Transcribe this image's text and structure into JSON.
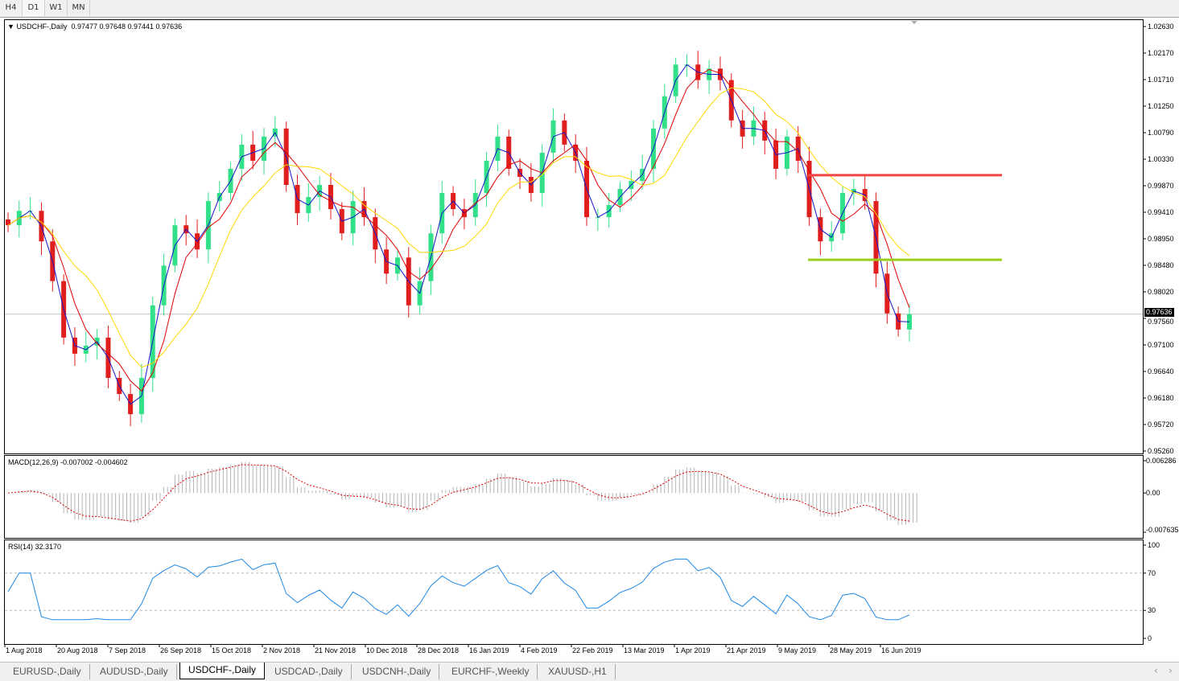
{
  "toolbar": {
    "timeframes": [
      {
        "label": "H4"
      },
      {
        "label": "D1",
        "active": true
      },
      {
        "label": "W1"
      },
      {
        "label": "MN"
      }
    ]
  },
  "chart_header": {
    "symbol": "USDCHF-,Daily",
    "ohlc": "0.97477 0.97648 0.97441 0.97636"
  },
  "colors": {
    "bull": "#33e08a",
    "bear": "#e01e1e",
    "ma_fast": "#1414c8",
    "ma_mid": "#e00000",
    "ma_slow": "#ffd700",
    "macd_hist": "#b4b4b4",
    "macd_signal": "#e00000",
    "rsi": "#1e88e5",
    "resistance": "#f04545",
    "support": "#9acd1e"
  },
  "chart_data": {
    "type": "candlestick",
    "symbol": "USDCHF",
    "timeframe": "Daily",
    "closes": [
      0.9918,
      0.9943,
      0.9943,
      0.989,
      0.9821,
      0.9723,
      0.9695,
      0.9709,
      0.9723,
      0.9653,
      0.9625,
      0.959,
      0.9653,
      0.9779,
      0.9848,
      0.9918,
      0.9904,
      0.9876,
      0.996,
      0.9974,
      1.0016,
      1.0058,
      1.003,
      1.0072,
      1.0086,
      0.9988,
      0.9939,
      0.9967,
      0.9988,
      0.9946,
      0.9904,
      0.996,
      0.9932,
      0.9876,
      0.9834,
      0.9862,
      0.9779,
      0.9821,
      0.9904,
      0.9974,
      0.9946,
      0.9932,
      0.9974,
      1.003,
      1.0072,
      1.0016,
      1.0002,
      0.9974,
      1.0044,
      1.01,
      1.0058,
      1.003,
      0.9932,
      0.9932,
      0.9953,
      0.9981,
      0.9995,
      1.0016,
      1.0086,
      1.0142,
      1.0197,
      1.0197,
      1.017,
      1.019,
      1.017,
      1.01,
      1.0072,
      1.01,
      1.0065,
      1.0016,
      1.0072,
      1.003,
      0.9932,
      0.989,
      0.9904,
      0.9974,
      0.9981,
      0.996,
      0.9834,
      0.9765,
      0.9737,
      0.97636
    ],
    "price_ticks": [
      "1.02630",
      "1.02170",
      "1.01710",
      "1.01250",
      "1.00790",
      "1.00330",
      "0.99870",
      "0.99410",
      "0.98950",
      "0.98480",
      "0.98020",
      "0.97560",
      "0.97100",
      "0.96640",
      "0.96180",
      "0.95720",
      "0.95260"
    ],
    "ylim": [
      0.9526,
      1.0263
    ],
    "date_ticks": [
      "1 Aug 2018",
      "20 Aug 2018",
      "7 Sep 2018",
      "26 Sep 2018",
      "15 Oct 2018",
      "2 Nov 2018",
      "21 Nov 2018",
      "10 Dec 2018",
      "28 Dec 2018",
      "16 Jan 2019",
      "4 Feb 2019",
      "22 Feb 2019",
      "13 Mar 2019",
      "1 Apr 2019",
      "21 Apr 2019",
      "9 May 2019",
      "28 May 2019",
      "16 Jun 2019"
    ],
    "current_price": "0.97636",
    "levels": [
      {
        "type": "resistance",
        "price": 1.0005
      },
      {
        "type": "support",
        "price": 0.9858
      }
    ],
    "moving_averages": [
      "fast",
      "mid",
      "slow"
    ],
    "macd": {
      "label": "MACD(12,26,9) -0.007002 -0.004602",
      "ticks": [
        "0.006286",
        "0.00",
        "-0.007635"
      ],
      "ylim": [
        -0.007635,
        0.006286
      ]
    },
    "rsi": {
      "label": "RSI(14) 32.3170",
      "ticks": [
        "100",
        "70",
        "30",
        "0"
      ],
      "levels": [
        70,
        30
      ],
      "ylim": [
        0,
        100
      ]
    }
  },
  "tabs": [
    {
      "label": "EURUSD-,Daily"
    },
    {
      "label": "AUDUSD-,Daily"
    },
    {
      "label": "USDCHF-,Daily",
      "active": true
    },
    {
      "label": "USDCAD-,Daily"
    },
    {
      "label": "USDCNH-,Daily"
    },
    {
      "label": "EURCHF-,Weekly"
    },
    {
      "label": "XAUUSD-,H1"
    }
  ],
  "scroll": {
    "left": "‹",
    "right": "›"
  }
}
